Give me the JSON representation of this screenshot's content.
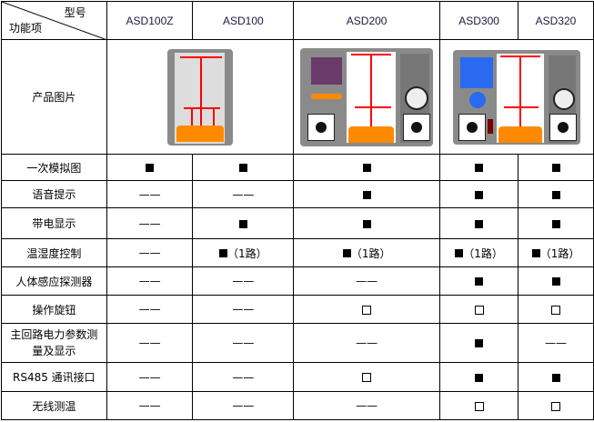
{
  "header": {
    "corner_top": "型号",
    "corner_bottom": "功能项",
    "models": [
      "ASD100Z",
      "ASD100",
      "ASD200",
      "ASD300",
      "ASD320"
    ]
  },
  "image_row_label": "产品图片",
  "icons": {
    "filled": "filled-square-icon",
    "empty": "empty-square-icon",
    "none": "dash"
  },
  "rows": [
    {
      "label": "一次模拟图",
      "cells": [
        {
          "type": "filled"
        },
        {
          "type": "filled"
        },
        {
          "type": "filled"
        },
        {
          "type": "filled"
        },
        {
          "type": "filled"
        }
      ]
    },
    {
      "label": "语音提示",
      "cells": [
        {
          "type": "none",
          "text": "——"
        },
        {
          "type": "none",
          "text": "——"
        },
        {
          "type": "filled"
        },
        {
          "type": "filled"
        },
        {
          "type": "filled"
        }
      ]
    },
    {
      "label": "带电显示",
      "cells": [
        {
          "type": "none",
          "text": "——"
        },
        {
          "type": "filled"
        },
        {
          "type": "filled"
        },
        {
          "type": "filled"
        },
        {
          "type": "filled"
        }
      ]
    },
    {
      "label": "温湿度控制",
      "cells": [
        {
          "type": "none",
          "text": "——"
        },
        {
          "type": "filled",
          "note": "（1路）"
        },
        {
          "type": "filled",
          "note": "（1路）"
        },
        {
          "type": "filled",
          "note": "（1路）"
        },
        {
          "type": "filled",
          "note": "（1路）"
        }
      ]
    },
    {
      "label": "人体感应探测器",
      "cells": [
        {
          "type": "none",
          "text": "——"
        },
        {
          "type": "none",
          "text": "——"
        },
        {
          "type": "none",
          "text": "——"
        },
        {
          "type": "filled"
        },
        {
          "type": "filled"
        }
      ]
    },
    {
      "label": "操作旋钮",
      "cells": [
        {
          "type": "none",
          "text": "——"
        },
        {
          "type": "none",
          "text": "——"
        },
        {
          "type": "empty"
        },
        {
          "type": "empty"
        },
        {
          "type": "empty"
        }
      ]
    },
    {
      "label": "主回路电力参数测量及显示",
      "cells": [
        {
          "type": "none",
          "text": "——"
        },
        {
          "type": "none",
          "text": "——"
        },
        {
          "type": "none",
          "text": "——"
        },
        {
          "type": "filled"
        },
        {
          "type": "none",
          "text": "——"
        }
      ]
    },
    {
      "label": "RS485 通讯接口",
      "cells": [
        {
          "type": "none",
          "text": "——"
        },
        {
          "type": "none",
          "text": "——"
        },
        {
          "type": "empty"
        },
        {
          "type": "filled"
        },
        {
          "type": "filled"
        }
      ]
    },
    {
      "label": "无线测温",
      "cells": [
        {
          "type": "none",
          "text": "——"
        },
        {
          "type": "none",
          "text": "——"
        },
        {
          "type": "none",
          "text": "——"
        },
        {
          "type": "empty"
        },
        {
          "type": "empty"
        }
      ]
    }
  ]
}
